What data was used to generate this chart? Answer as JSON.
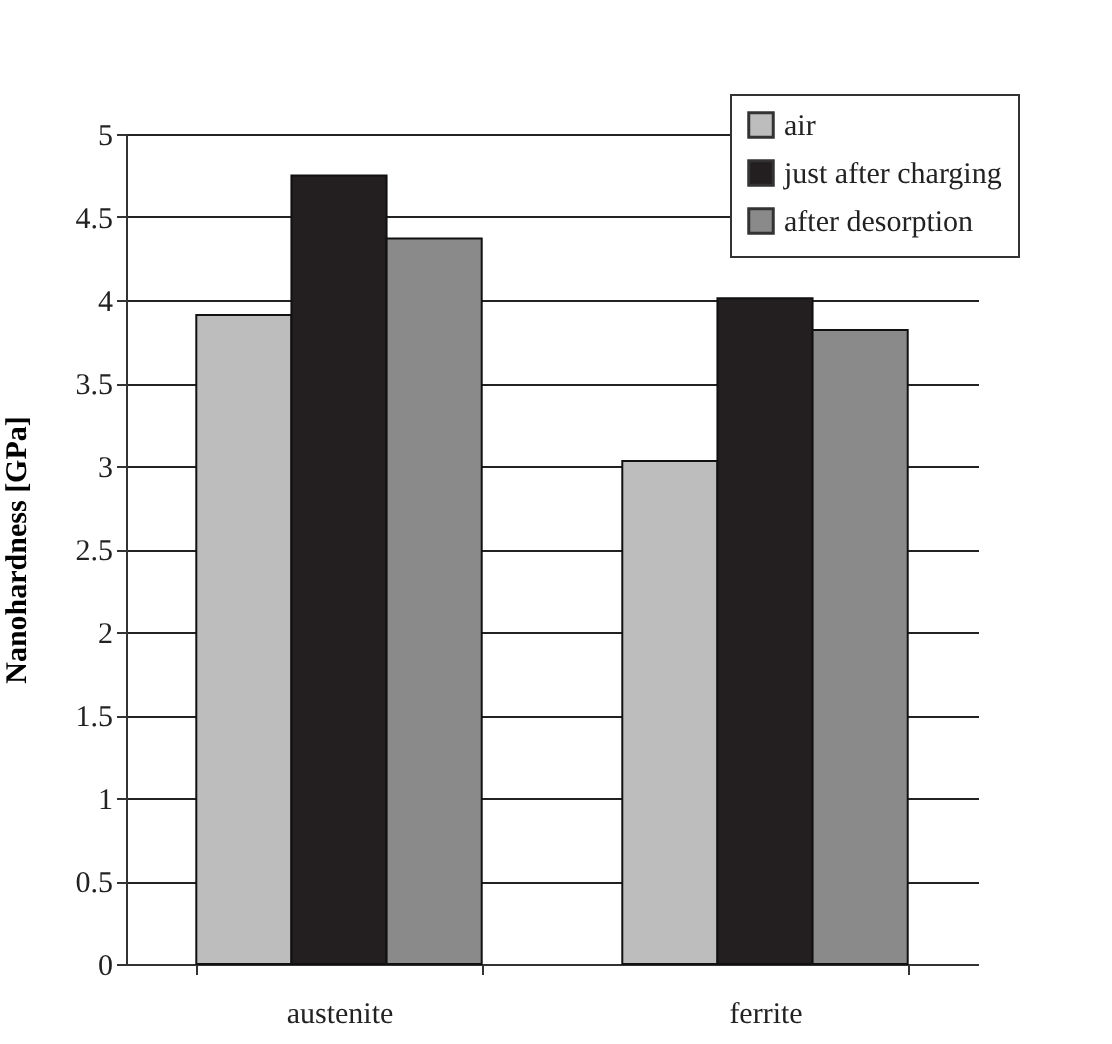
{
  "chart_data": {
    "type": "bar",
    "ylabel": "Nanohardness [GPa]",
    "categories": [
      "austenite",
      "ferrite"
    ],
    "series": [
      {
        "name": "air",
        "color": "#bdbdbd",
        "values": [
          3.91,
          3.03
        ]
      },
      {
        "name": "just after charging",
        "color": "#231f20",
        "values": [
          4.75,
          4.01
        ]
      },
      {
        "name": "after desorption",
        "color": "#8a8a8a",
        "values": [
          4.37,
          3.82
        ]
      }
    ],
    "ylim": [
      0,
      5
    ],
    "yticks": [
      0,
      0.5,
      1,
      1.5,
      2,
      2.5,
      3,
      3.5,
      4,
      4.5,
      5
    ],
    "grid": "y",
    "legend": "top right"
  }
}
